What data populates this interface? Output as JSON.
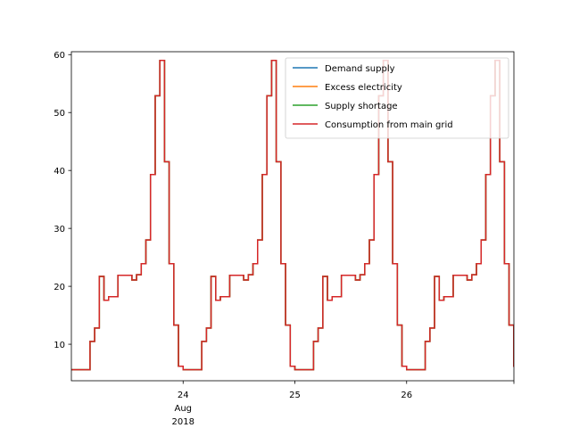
{
  "chart_data": {
    "type": "line",
    "step": "post",
    "x_start": "2018-08-23 00:00",
    "x_end": "2018-08-26 23:00",
    "interval_hours": 1,
    "xlim_days": [
      0,
      3.96
    ],
    "ylim": [
      3.7,
      60.5
    ],
    "y_ticks": [
      10,
      20,
      30,
      40,
      50,
      60
    ],
    "x_ticks": [
      {
        "day": 1,
        "labels": [
          "24",
          "Aug",
          "2018"
        ]
      },
      {
        "day": 2,
        "labels": [
          "25"
        ]
      },
      {
        "day": 3,
        "labels": [
          "26"
        ]
      },
      {
        "day": 3.96,
        "labels": []
      }
    ],
    "legend_position": "upper right",
    "daily_profile": [
      5.6,
      5.6,
      5.6,
      5.6,
      10.5,
      12.8,
      21.7,
      17.6,
      18.2,
      18.2,
      21.9,
      21.9,
      21.9,
      21.1,
      22.0,
      23.9,
      28.0,
      39.3,
      52.9,
      59.0,
      41.5,
      23.9,
      13.3,
      6.2
    ],
    "series": [
      {
        "name": "Demand supply",
        "color": "#1f77b4",
        "values": [
          5.6,
          5.6,
          5.6,
          5.6,
          10.5,
          12.8,
          21.7,
          17.6,
          18.2,
          18.2,
          21.9,
          21.9,
          21.9,
          21.1,
          22.0,
          23.9,
          28.0,
          39.3,
          52.9,
          59.0,
          41.5,
          23.9,
          13.3,
          6.2,
          5.6,
          5.6,
          5.6,
          5.6,
          10.5,
          12.8,
          21.7,
          17.6,
          18.2,
          18.2,
          21.9,
          21.9,
          21.9,
          21.1,
          22.0,
          23.9,
          28.0,
          39.3,
          52.9,
          59.0,
          41.5,
          23.9,
          13.3,
          6.2,
          5.6,
          5.6,
          5.6,
          5.6,
          10.5,
          12.8,
          21.7,
          17.6,
          18.2,
          18.2,
          21.9,
          21.9,
          21.9,
          21.1,
          22.0,
          23.9,
          28.0,
          39.3,
          52.9,
          59.0,
          41.5,
          23.9,
          13.3,
          6.2,
          5.6,
          5.6,
          5.6,
          5.6,
          10.5,
          12.8,
          21.7,
          17.6,
          18.2,
          18.2,
          21.9,
          21.9,
          21.9,
          21.1,
          22.0,
          23.9,
          28.0,
          39.3,
          52.9,
          59.0,
          41.5,
          23.9,
          13.3,
          6.2
        ]
      },
      {
        "name": "Excess electricity",
        "color": "#ff7f0e",
        "values": [
          5.6,
          5.6,
          5.6,
          5.6,
          10.5,
          12.8,
          21.7,
          17.6,
          18.2,
          18.2,
          21.9,
          21.9,
          21.9,
          21.1,
          22.0,
          23.9,
          28.0,
          39.3,
          52.9,
          59.0,
          41.5,
          23.9,
          13.3,
          6.2,
          5.6,
          5.6,
          5.6,
          5.6,
          10.5,
          12.8,
          21.7,
          17.6,
          18.2,
          18.2,
          21.9,
          21.9,
          21.9,
          21.1,
          22.0,
          23.9,
          28.0,
          39.3,
          52.9,
          59.0,
          41.5,
          23.9,
          13.3,
          6.2,
          5.6,
          5.6,
          5.6,
          5.6,
          10.5,
          12.8,
          21.7,
          17.6,
          18.2,
          18.2,
          21.9,
          21.9,
          21.9,
          21.1,
          22.0,
          23.9,
          28.0,
          39.3,
          52.9,
          59.0,
          41.5,
          23.9,
          13.3,
          6.2,
          5.6,
          5.6,
          5.6,
          5.6,
          10.5,
          12.8,
          21.7,
          17.6,
          18.2,
          18.2,
          21.9,
          21.9,
          21.9,
          21.1,
          22.0,
          23.9,
          28.0,
          39.3,
          52.9,
          59.0,
          41.5,
          23.9,
          13.3,
          6.2
        ]
      },
      {
        "name": "Supply shortage",
        "color": "#2ca02c",
        "values": [
          5.6,
          5.6,
          5.6,
          5.6,
          10.5,
          12.8,
          21.7,
          17.6,
          18.2,
          18.2,
          21.9,
          21.9,
          21.9,
          21.1,
          22.0,
          23.9,
          28.0,
          39.3,
          52.9,
          59.0,
          41.5,
          23.9,
          13.3,
          6.2,
          5.6,
          5.6,
          5.6,
          5.6,
          10.5,
          12.8,
          21.7,
          17.6,
          18.2,
          18.2,
          21.9,
          21.9,
          21.9,
          21.1,
          22.0,
          23.9,
          28.0,
          39.3,
          52.9,
          59.0,
          41.5,
          23.9,
          13.3,
          6.2,
          5.6,
          5.6,
          5.6,
          5.6,
          10.5,
          12.8,
          21.7,
          17.6,
          18.2,
          18.2,
          21.9,
          21.9,
          21.9,
          21.1,
          22.0,
          23.9,
          28.0,
          39.3,
          52.9,
          59.0,
          41.5,
          23.9,
          13.3,
          6.2,
          5.6,
          5.6,
          5.6,
          5.6,
          10.5,
          12.8,
          21.7,
          17.6,
          18.2,
          18.2,
          21.9,
          21.9,
          21.9,
          21.1,
          22.0,
          23.9,
          28.0,
          39.3,
          52.9,
          59.0,
          41.5,
          23.9,
          13.3,
          6.2
        ]
      },
      {
        "name": "Consumption from main grid",
        "color": "#d62728",
        "values": [
          5.6,
          5.6,
          5.6,
          5.6,
          10.5,
          12.8,
          21.7,
          17.6,
          18.2,
          18.2,
          21.9,
          21.9,
          21.9,
          21.1,
          22.0,
          23.9,
          28.0,
          39.3,
          52.9,
          59.0,
          41.5,
          23.9,
          13.3,
          6.2,
          5.6,
          5.6,
          5.6,
          5.6,
          10.5,
          12.8,
          21.7,
          17.6,
          18.2,
          18.2,
          21.9,
          21.9,
          21.9,
          21.1,
          22.0,
          23.9,
          28.0,
          39.3,
          52.9,
          59.0,
          41.5,
          23.9,
          13.3,
          6.2,
          5.6,
          5.6,
          5.6,
          5.6,
          10.5,
          12.8,
          21.7,
          17.6,
          18.2,
          18.2,
          21.9,
          21.9,
          21.9,
          21.1,
          22.0,
          23.9,
          28.0,
          39.3,
          52.9,
          59.0,
          41.5,
          23.9,
          13.3,
          6.2,
          5.6,
          5.6,
          5.6,
          5.6,
          10.5,
          12.8,
          21.7,
          17.6,
          18.2,
          18.2,
          21.9,
          21.9,
          21.9,
          21.1,
          22.0,
          23.9,
          28.0,
          39.3,
          52.9,
          59.0,
          41.5,
          23.9,
          13.3,
          6.2
        ]
      }
    ]
  }
}
